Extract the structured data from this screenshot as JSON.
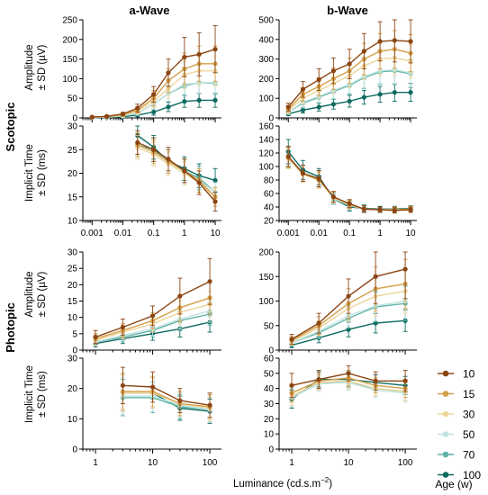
{
  "column_titles": [
    "a-Wave",
    "b-Wave"
  ],
  "row_titles": [
    "Scotopic",
    "Photopic"
  ],
  "ylabel_amplitude": [
    "Amplitude",
    "± SD (µV)"
  ],
  "ylabel_implicit": [
    "Implicit Time",
    "± SD (ms)"
  ],
  "xlabel": "Luminance (cd.s.m",
  "xlabel_sup": "−2",
  "xlabel_close": ")",
  "legend_title": "Age (w)",
  "colors": {
    "10": "#8b4513",
    "15": "#d4a04a",
    "30": "#efd59c",
    "50": "#bfe3df",
    "70": "#5fb3a8",
    "100": "#0e6b61"
  },
  "chart_data": [
    {
      "id": "scot-a-amp",
      "type": "line",
      "xscale": "log",
      "xlim": [
        0.0005,
        16
      ],
      "ylim": [
        0,
        250
      ],
      "yticks": [
        0,
        50,
        100,
        150,
        200,
        250
      ],
      "x": [
        0.001,
        0.003,
        0.01,
        0.03,
        0.1,
        0.3,
        1,
        3,
        10
      ],
      "series": [
        {
          "name": "10",
          "values": [
            2,
            4,
            10,
            25,
            60,
            115,
            155,
            162,
            175
          ],
          "sd": [
            1,
            2,
            4,
            10,
            20,
            35,
            50,
            55,
            60
          ]
        },
        {
          "name": "15",
          "values": [
            2,
            3,
            8,
            20,
            50,
            95,
            125,
            138,
            138
          ],
          "sd": [
            1,
            2,
            4,
            8,
            20,
            30,
            40,
            45,
            45
          ]
        },
        {
          "name": "30",
          "values": [
            2,
            3,
            7,
            17,
            42,
            75,
            110,
            120,
            120
          ],
          "sd": [
            1,
            2,
            3,
            7,
            15,
            25,
            35,
            38,
            38
          ]
        },
        {
          "name": "50",
          "values": [
            1,
            2,
            5,
            12,
            35,
            62,
            85,
            90,
            90
          ],
          "sd": [
            1,
            1,
            3,
            5,
            12,
            20,
            25,
            28,
            28
          ]
        },
        {
          "name": "70",
          "values": [
            1,
            2,
            5,
            12,
            35,
            62,
            82,
            90,
            88
          ],
          "sd": [
            1,
            1,
            3,
            5,
            12,
            20,
            25,
            28,
            28
          ]
        },
        {
          "name": "100",
          "values": [
            1,
            1,
            3,
            7,
            15,
            28,
            42,
            45,
            45
          ],
          "sd": [
            1,
            1,
            2,
            4,
            8,
            12,
            15,
            18,
            18
          ]
        }
      ]
    },
    {
      "id": "scot-b-amp",
      "type": "line",
      "xscale": "log",
      "xlim": [
        0.0005,
        16
      ],
      "ylim": [
        0,
        500
      ],
      "yticks": [
        0,
        100,
        200,
        300,
        400,
        500
      ],
      "x": [
        0.001,
        0.003,
        0.01,
        0.03,
        0.1,
        0.3,
        1,
        3,
        10
      ],
      "series": [
        {
          "name": "10",
          "values": [
            55,
            145,
            195,
            240,
            275,
            340,
            390,
            395,
            390
          ],
          "sd": [
            20,
            40,
            55,
            65,
            75,
            90,
            100,
            110,
            110
          ]
        },
        {
          "name": "15",
          "values": [
            45,
            120,
            160,
            200,
            240,
            300,
            340,
            350,
            330
          ],
          "sd": [
            18,
            35,
            45,
            55,
            65,
            80,
            90,
            95,
            95
          ]
        },
        {
          "name": "30",
          "values": [
            40,
            100,
            140,
            175,
            215,
            265,
            300,
            305,
            290
          ],
          "sd": [
            15,
            30,
            40,
            50,
            60,
            70,
            80,
            85,
            85
          ]
        },
        {
          "name": "50",
          "values": [
            30,
            80,
            110,
            140,
            170,
            210,
            240,
            245,
            230
          ],
          "sd": [
            12,
            25,
            30,
            40,
            45,
            55,
            65,
            70,
            70
          ]
        },
        {
          "name": "70",
          "values": [
            30,
            75,
            105,
            135,
            165,
            205,
            235,
            240,
            225
          ],
          "sd": [
            12,
            25,
            30,
            40,
            45,
            55,
            65,
            70,
            70
          ]
        },
        {
          "name": "100",
          "values": [
            20,
            40,
            55,
            70,
            85,
            105,
            120,
            130,
            130
          ],
          "sd": [
            8,
            15,
            20,
            25,
            30,
            35,
            40,
            45,
            45
          ]
        }
      ]
    },
    {
      "id": "scot-a-imp",
      "type": "line",
      "xscale": "log",
      "xlim": [
        0.0005,
        16
      ],
      "ylim": [
        10,
        30
      ],
      "yticks": [
        10,
        15,
        20,
        25,
        30
      ],
      "xticks": [
        0.001,
        0.01,
        0.1,
        1,
        10
      ],
      "xticklabels": [
        "0.001",
        "0.01",
        "0.1",
        "1",
        "10"
      ],
      "x": [
        0.03,
        0.1,
        0.3,
        1,
        3,
        10
      ],
      "series": [
        {
          "name": "10",
          "values": [
            26.5,
            25.0,
            23.0,
            20.5,
            18.0,
            14.0
          ],
          "sd": [
            2.5,
            2.5,
            2.5,
            2.5,
            2.5,
            2.0
          ]
        },
        {
          "name": "15",
          "values": [
            26.0,
            24.5,
            22.5,
            20.5,
            18.5,
            15.0
          ],
          "sd": [
            2.5,
            2.5,
            2.5,
            2.5,
            2.5,
            2.0
          ]
        },
        {
          "name": "30",
          "values": [
            25.5,
            24.0,
            22.0,
            20.0,
            18.0,
            15.0
          ],
          "sd": [
            2.5,
            2.5,
            2.5,
            2.5,
            2.5,
            2.0
          ]
        },
        {
          "name": "50",
          "values": [
            25.5,
            24.0,
            22.0,
            20.0,
            18.5,
            16.0
          ],
          "sd": [
            2.5,
            2.5,
            2.5,
            2.5,
            2.5,
            2.0
          ]
        },
        {
          "name": "70",
          "values": [
            26.0,
            25.0,
            22.5,
            20.5,
            19.0,
            16.0
          ],
          "sd": [
            2.5,
            2.5,
            2.5,
            2.5,
            2.5,
            2.0
          ]
        },
        {
          "name": "100",
          "values": [
            28.0,
            25.5,
            22.5,
            21.0,
            19.5,
            18.5
          ],
          "sd": [
            2.5,
            2.5,
            2.5,
            2.5,
            2.5,
            2.5
          ]
        }
      ]
    },
    {
      "id": "scot-b-imp",
      "type": "line",
      "xscale": "log",
      "xlim": [
        0.0005,
        16
      ],
      "ylim": [
        20,
        160
      ],
      "yticks": [
        20,
        40,
        60,
        80,
        100,
        120,
        140,
        160
      ],
      "xticks": [
        0.001,
        0.01,
        0.1,
        1,
        10
      ],
      "xticklabels": [
        "0.001",
        "0.01",
        "0.1",
        "1",
        "10"
      ],
      "x": [
        0.001,
        0.003,
        0.01,
        0.03,
        0.1,
        0.3,
        1,
        3,
        10
      ],
      "series": [
        {
          "name": "10",
          "values": [
            115,
            90,
            82,
            55,
            45,
            37,
            36,
            35,
            36
          ],
          "sd": [
            15,
            12,
            12,
            8,
            6,
            5,
            4,
            4,
            4
          ]
        },
        {
          "name": "15",
          "values": [
            113,
            90,
            80,
            55,
            44,
            37,
            36,
            36,
            37
          ],
          "sd": [
            15,
            12,
            12,
            8,
            6,
            5,
            4,
            4,
            4
          ]
        },
        {
          "name": "30",
          "values": [
            112,
            88,
            80,
            54,
            43,
            37,
            36,
            36,
            37
          ],
          "sd": [
            15,
            12,
            12,
            8,
            6,
            5,
            4,
            4,
            4
          ]
        },
        {
          "name": "50",
          "values": [
            112,
            88,
            80,
            53,
            43,
            37,
            36,
            36,
            37
          ],
          "sd": [
            15,
            12,
            12,
            8,
            6,
            5,
            4,
            4,
            4
          ]
        },
        {
          "name": "70",
          "values": [
            114,
            90,
            82,
            52,
            42,
            37,
            36,
            36,
            37
          ],
          "sd": [
            15,
            12,
            12,
            8,
            6,
            5,
            4,
            4,
            4
          ]
        },
        {
          "name": "100",
          "values": [
            122,
            95,
            85,
            52,
            40,
            38,
            37,
            37,
            38
          ],
          "sd": [
            18,
            14,
            12,
            8,
            6,
            5,
            4,
            4,
            4
          ]
        }
      ]
    },
    {
      "id": "phot-a-amp",
      "type": "line",
      "xscale": "log",
      "xlim": [
        0.6,
        160
      ],
      "ylim": [
        0,
        30
      ],
      "yticks": [
        0,
        5,
        10,
        15,
        20,
        25,
        30
      ],
      "x": [
        1,
        3,
        10,
        30,
        100
      ],
      "series": [
        {
          "name": "10",
          "values": [
            4.0,
            7.0,
            10.5,
            16.5,
            21.0
          ],
          "sd": [
            2.0,
            2.5,
            3.0,
            5.5,
            7.0
          ]
        },
        {
          "name": "15",
          "values": [
            3.5,
            6.0,
            9.0,
            13.0,
            16.0
          ],
          "sd": [
            1.5,
            2.0,
            2.5,
            4.0,
            5.0
          ]
        },
        {
          "name": "30",
          "values": [
            3.0,
            5.5,
            8.0,
            11.5,
            14.0
          ],
          "sd": [
            1.5,
            2.0,
            2.5,
            3.5,
            4.0
          ]
        },
        {
          "name": "50",
          "values": [
            2.5,
            4.5,
            6.5,
            9.5,
            12.0
          ],
          "sd": [
            1.0,
            1.5,
            2.0,
            3.0,
            3.5
          ]
        },
        {
          "name": "70",
          "values": [
            2.5,
            4.0,
            6.0,
            9.0,
            11.0
          ],
          "sd": [
            1.0,
            1.5,
            2.0,
            3.0,
            3.5
          ]
        },
        {
          "name": "100",
          "values": [
            2.0,
            3.5,
            5.0,
            6.5,
            8.5
          ],
          "sd": [
            1.0,
            1.5,
            2.0,
            2.5,
            3.0
          ]
        }
      ]
    },
    {
      "id": "phot-b-amp",
      "type": "line",
      "xscale": "log",
      "xlim": [
        0.6,
        160
      ],
      "ylim": [
        0,
        200
      ],
      "yticks": [
        0,
        50,
        100,
        150,
        200
      ],
      "x": [
        1,
        3,
        10,
        30,
        100
      ],
      "series": [
        {
          "name": "10",
          "values": [
            22,
            55,
            110,
            150,
            165
          ],
          "sd": [
            10,
            20,
            35,
            55,
            60
          ]
        },
        {
          "name": "15",
          "values": [
            20,
            50,
            95,
            125,
            135
          ],
          "sd": [
            8,
            18,
            30,
            45,
            50
          ]
        },
        {
          "name": "30",
          "values": [
            18,
            45,
            85,
            110,
            120
          ],
          "sd": [
            8,
            15,
            25,
            40,
            45
          ]
        },
        {
          "name": "50",
          "values": [
            15,
            38,
            70,
            90,
            100
          ],
          "sd": [
            6,
            12,
            20,
            30,
            35
          ]
        },
        {
          "name": "70",
          "values": [
            15,
            35,
            65,
            88,
            95
          ],
          "sd": [
            6,
            12,
            20,
            30,
            35
          ]
        },
        {
          "name": "100",
          "values": [
            10,
            25,
            42,
            55,
            60
          ],
          "sd": [
            5,
            10,
            15,
            20,
            22
          ]
        }
      ]
    },
    {
      "id": "phot-a-imp",
      "type": "line",
      "xscale": "log",
      "xlim": [
        0.6,
        160
      ],
      "ylim": [
        0,
        30
      ],
      "yticks": [
        0,
        10,
        20,
        30
      ],
      "xticks": [
        1,
        10,
        100
      ],
      "xticklabels": [
        "1",
        "10",
        "100"
      ],
      "x": [
        3,
        10,
        30,
        100
      ],
      "series": [
        {
          "name": "10",
          "values": [
            21.0,
            20.5,
            16.0,
            14.5
          ],
          "sd": [
            6.0,
            5.0,
            4.0,
            4.0
          ]
        },
        {
          "name": "15",
          "values": [
            19.0,
            19.0,
            15.0,
            14.0
          ],
          "sd": [
            6.0,
            5.0,
            4.0,
            4.0
          ]
        },
        {
          "name": "30",
          "values": [
            18.5,
            18.5,
            15.0,
            13.5
          ],
          "sd": [
            6.0,
            5.0,
            4.0,
            4.0
          ]
        },
        {
          "name": "50",
          "values": [
            17.5,
            17.5,
            14.5,
            13.0
          ],
          "sd": [
            6.0,
            5.0,
            4.0,
            4.0
          ]
        },
        {
          "name": "70",
          "values": [
            17.0,
            17.0,
            14.0,
            13.0
          ],
          "sd": [
            6.0,
            5.0,
            4.0,
            4.0
          ]
        },
        {
          "name": "100",
          "values": [
            18.5,
            18.5,
            13.5,
            12.5
          ],
          "sd": [
            6.0,
            5.0,
            4.0,
            4.0
          ]
        }
      ]
    },
    {
      "id": "phot-b-imp",
      "type": "line",
      "xscale": "log",
      "xlim": [
        0.6,
        160
      ],
      "ylim": [
        0,
        60
      ],
      "yticks": [
        0,
        10,
        20,
        30,
        40,
        50,
        60
      ],
      "xticks": [
        1,
        10,
        100
      ],
      "xticklabels": [
        "1",
        "10",
        "100"
      ],
      "x": [
        1,
        3,
        10,
        30,
        100
      ],
      "series": [
        {
          "name": "10",
          "values": [
            42,
            46,
            50,
            45,
            45
          ],
          "sd": [
            8,
            6,
            5,
            6,
            7
          ]
        },
        {
          "name": "15",
          "values": [
            37,
            45,
            47,
            42,
            40
          ],
          "sd": [
            6,
            5,
            5,
            5,
            6
          ]
        },
        {
          "name": "30",
          "values": [
            35,
            44,
            45,
            40,
            38
          ],
          "sd": [
            6,
            5,
            5,
            5,
            6
          ]
        },
        {
          "name": "50",
          "values": [
            34,
            43,
            44,
            39,
            37
          ],
          "sd": [
            6,
            5,
            5,
            5,
            6
          ]
        },
        {
          "name": "70",
          "values": [
            34,
            44,
            44,
            40,
            38
          ],
          "sd": [
            6,
            5,
            5,
            5,
            6
          ]
        },
        {
          "name": "100",
          "values": [
            33,
            46,
            46,
            44,
            42
          ],
          "sd": [
            6,
            5,
            5,
            5,
            6
          ]
        }
      ]
    }
  ]
}
